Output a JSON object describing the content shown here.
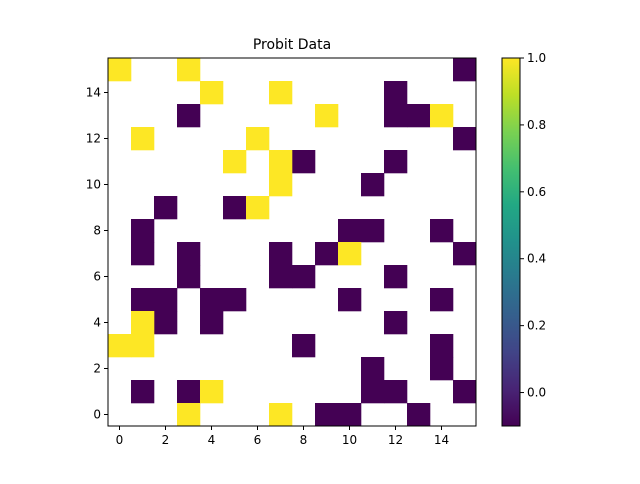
{
  "chart_data": {
    "type": "heatmap",
    "title": "Probit Data",
    "xlabel": "",
    "ylabel": "",
    "grid": false,
    "colormap": "viridis",
    "colorbar": {
      "vmin": -0.1,
      "vmax": 1.0,
      "ticks": [
        0.0,
        0.2,
        0.4,
        0.6,
        0.8,
        1.0
      ],
      "tick_labels": [
        "0.0",
        "0.2",
        "0.4",
        "0.6",
        "0.8",
        "1.0"
      ],
      "position": "right"
    },
    "xlim": [
      -0.5,
      15.5
    ],
    "ylim": [
      -0.5,
      15.5
    ],
    "x_ticks": [
      0,
      2,
      4,
      6,
      8,
      10,
      12,
      14
    ],
    "x_tick_labels": [
      "0",
      "2",
      "4",
      "6",
      "8",
      "10",
      "12",
      "14"
    ],
    "y_ticks": [
      0,
      2,
      4,
      6,
      8,
      10,
      12,
      14
    ],
    "y_tick_labels": [
      "0",
      "2",
      "4",
      "6",
      "8",
      "10",
      "12",
      "14"
    ],
    "colors": {
      "one": "#fde725",
      "zero": "#440154",
      "missing": "#ffffff"
    },
    "missing_value_note": "",
    "cells_value_1": [
      [
        0,
        15
      ],
      [
        3,
        15
      ],
      [
        4,
        14
      ],
      [
        7,
        14
      ],
      [
        9,
        13
      ],
      [
        14,
        13
      ],
      [
        1,
        12
      ],
      [
        6,
        12
      ],
      [
        5,
        11
      ],
      [
        7,
        11
      ],
      [
        7,
        10
      ],
      [
        6,
        9
      ],
      [
        10,
        7
      ],
      [
        1,
        4
      ],
      [
        0,
        3
      ],
      [
        1,
        3
      ],
      [
        4,
        1
      ],
      [
        3,
        0
      ],
      [
        7,
        0
      ]
    ],
    "cells_value_0": [
      [
        15,
        15
      ],
      [
        12,
        14
      ],
      [
        3,
        13
      ],
      [
        12,
        13
      ],
      [
        13,
        13
      ],
      [
        15,
        12
      ],
      [
        8,
        11
      ],
      [
        12,
        11
      ],
      [
        11,
        10
      ],
      [
        2,
        9
      ],
      [
        5,
        9
      ],
      [
        1,
        8
      ],
      [
        10,
        8
      ],
      [
        11,
        8
      ],
      [
        14,
        8
      ],
      [
        1,
        7
      ],
      [
        3,
        7
      ],
      [
        7,
        7
      ],
      [
        9,
        7
      ],
      [
        15,
        7
      ],
      [
        3,
        6
      ],
      [
        7,
        6
      ],
      [
        8,
        6
      ],
      [
        12,
        6
      ],
      [
        1,
        5
      ],
      [
        2,
        5
      ],
      [
        4,
        5
      ],
      [
        5,
        5
      ],
      [
        10,
        5
      ],
      [
        14,
        5
      ],
      [
        2,
        4
      ],
      [
        4,
        4
      ],
      [
        12,
        4
      ],
      [
        8,
        3
      ],
      [
        14,
        3
      ],
      [
        11,
        2
      ],
      [
        14,
        2
      ],
      [
        1,
        1
      ],
      [
        3,
        1
      ],
      [
        11,
        1
      ],
      [
        12,
        1
      ],
      [
        15,
        1
      ],
      [
        9,
        0
      ],
      [
        10,
        0
      ],
      [
        13,
        0
      ]
    ]
  }
}
